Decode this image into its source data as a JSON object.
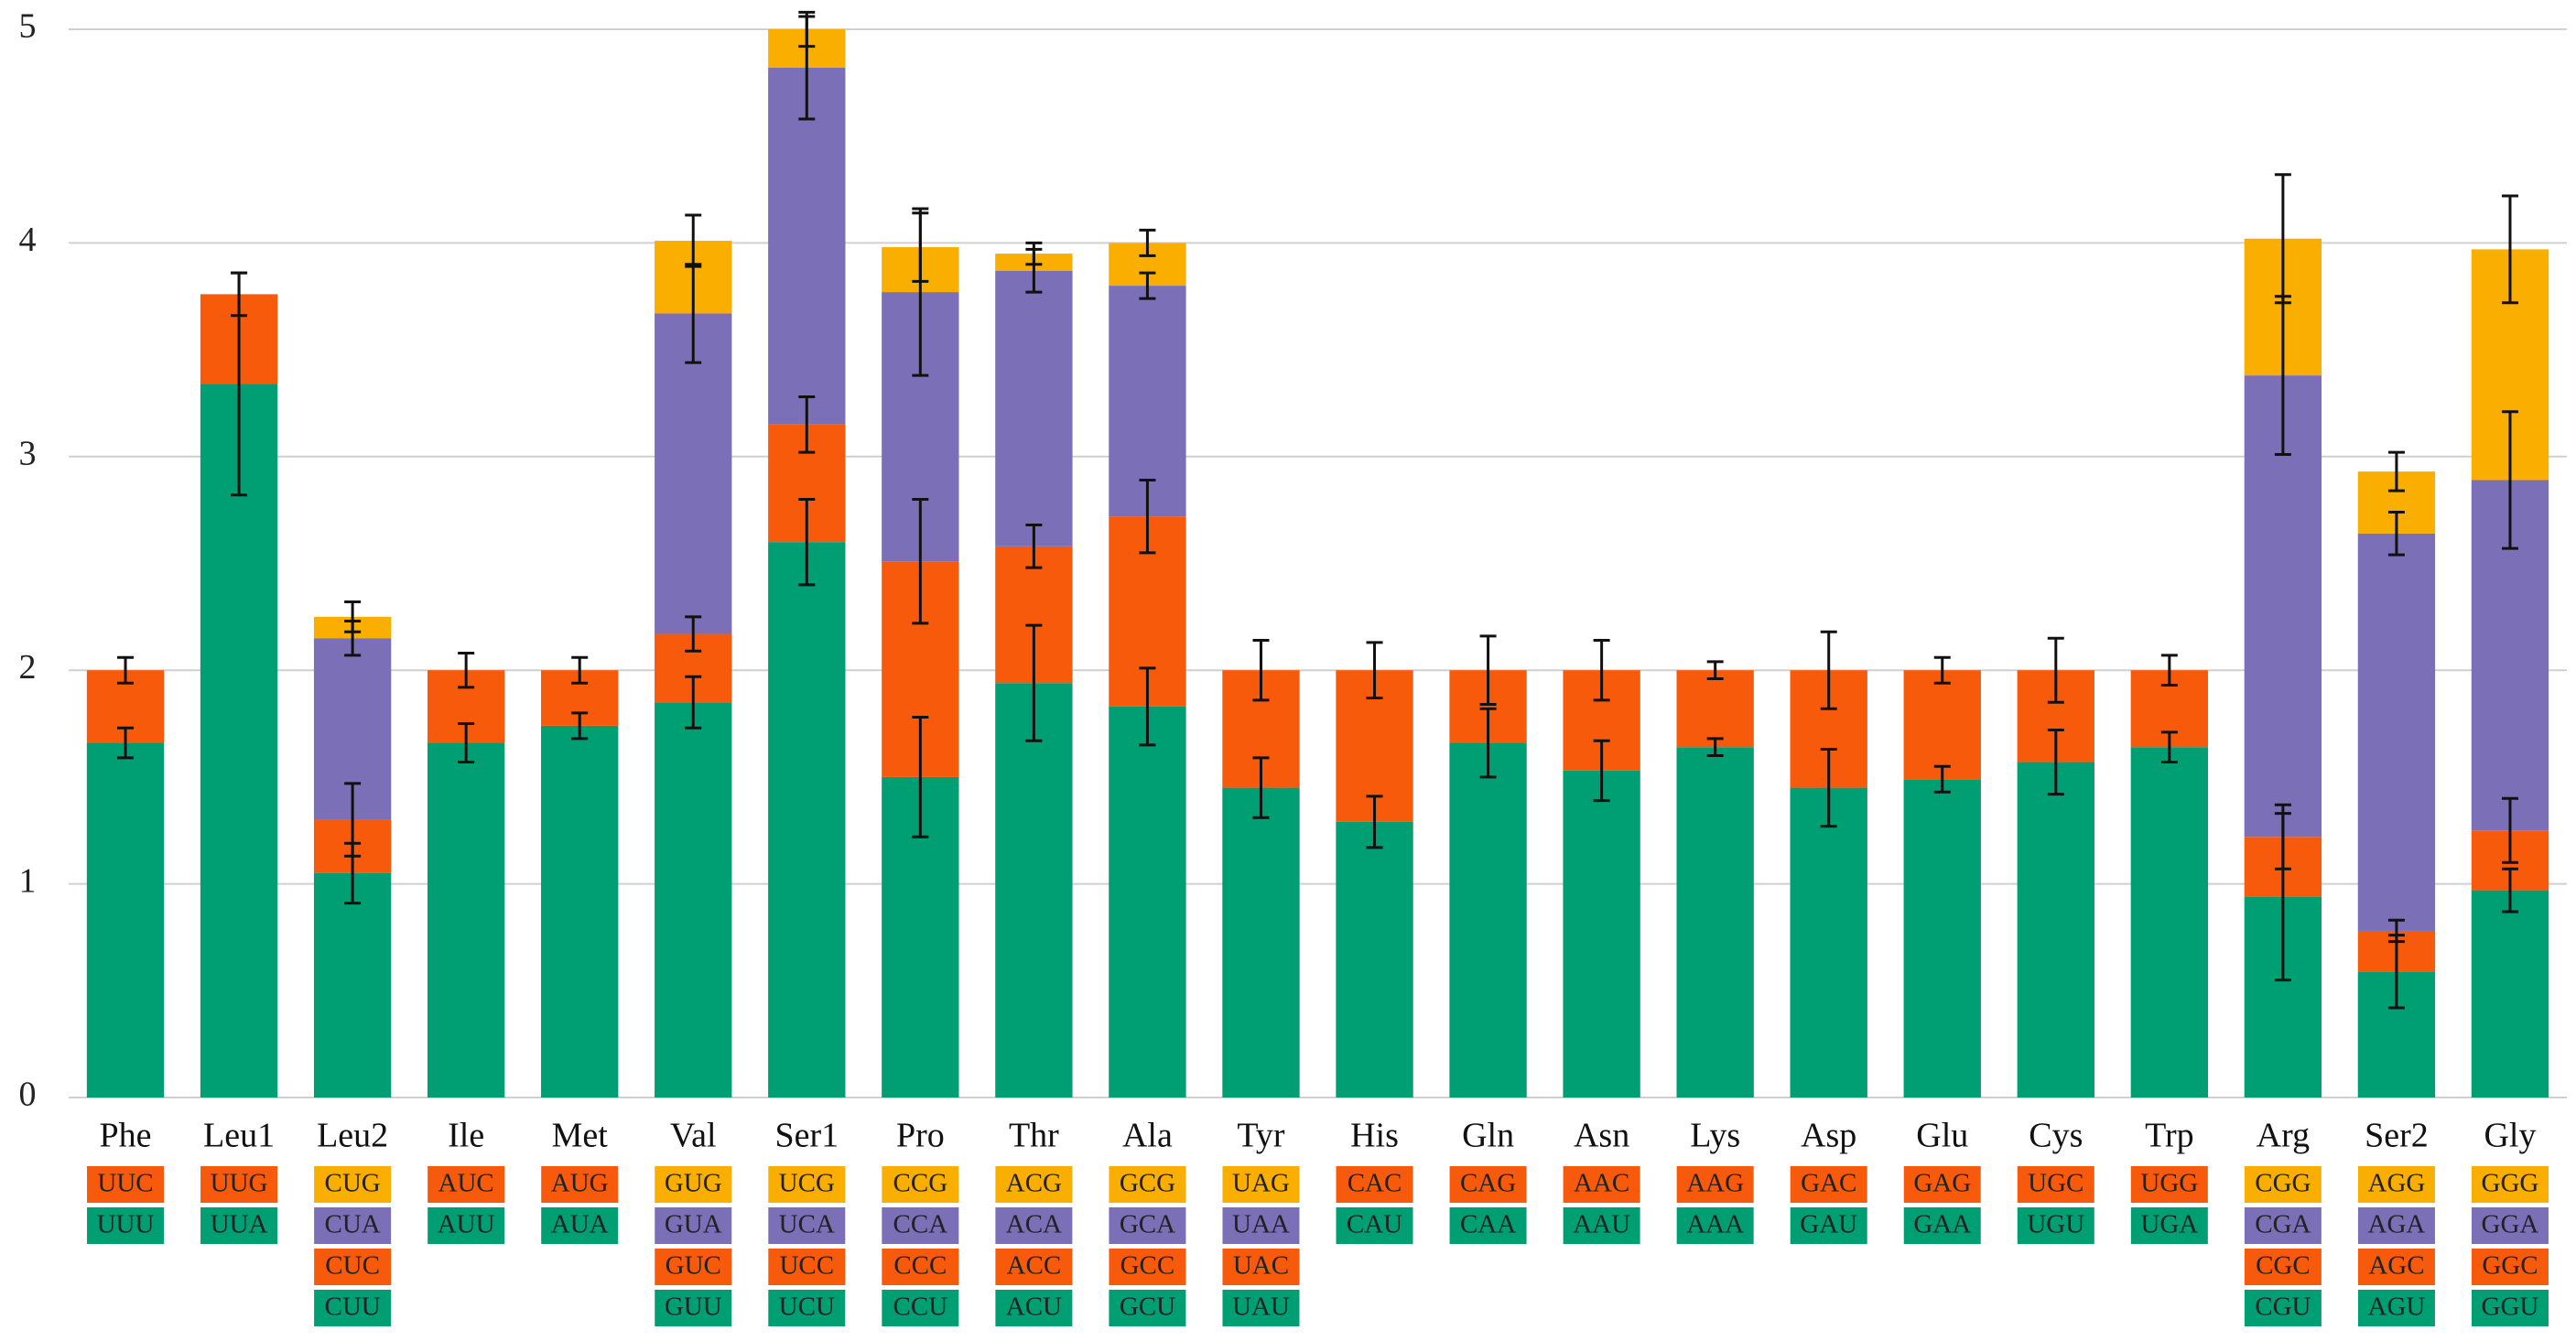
{
  "chart_data": {
    "type": "stacked_bar",
    "categories": [
      "Phe",
      "Leu1",
      "Leu2",
      "Ile",
      "Met",
      "Val",
      "Ser1",
      "Pro",
      "Thr",
      "Ala",
      "Tyr",
      "His",
      "Gln",
      "Asn",
      "Lys",
      "Asp",
      "Glu",
      "Cys",
      "Trp",
      "Arg",
      "Ser2",
      "Gly"
    ],
    "ylim": [
      0,
      5
    ],
    "yticks": [
      0,
      1,
      2,
      3,
      4,
      5
    ],
    "grid": true,
    "series": [
      {
        "color": "#009e73",
        "values": [
          1.66,
          3.34,
          1.05,
          1.66,
          1.74,
          1.85,
          2.6,
          1.5,
          1.94,
          1.83,
          1.45,
          1.29,
          1.66,
          1.53,
          1.64,
          1.45,
          1.49,
          1.57,
          1.64,
          0.94,
          0.59,
          0.97
        ],
        "errors": [
          0.07,
          0.52,
          0.14,
          0.09,
          0.06,
          0.12,
          0.2,
          0.28,
          0.27,
          0.18,
          0.14,
          0.12,
          0.16,
          0.14,
          0.04,
          0.18,
          0.06,
          0.15,
          0.07,
          0.39,
          0.17,
          0.1
        ],
        "codons": [
          "UUU",
          "UUA",
          "CUU",
          "AUU",
          "AUA",
          "GUU",
          "UCU",
          "CCU",
          "ACU",
          "GCU",
          "UAU",
          "CAU",
          "CAA",
          "AAU",
          "AAA",
          "GAU",
          "GAA",
          "UGU",
          "UGA",
          "CGU",
          "AGU",
          "GGU"
        ]
      },
      {
        "color": "#f85a0c",
        "values": [
          0.34,
          0.42,
          0.25,
          0.34,
          0.26,
          0.32,
          0.55,
          1.01,
          0.64,
          0.89,
          0.55,
          0.71,
          0.34,
          0.47,
          0.36,
          0.55,
          0.51,
          0.43,
          0.36,
          0.28,
          0.19,
          0.28
        ],
        "errors": [
          0.06,
          0.1,
          0.17,
          0.08,
          0.06,
          0.08,
          0.13,
          0.29,
          0.1,
          0.17,
          0.14,
          0.13,
          0.16,
          0.14,
          0.04,
          0.18,
          0.06,
          0.15,
          0.07,
          0.15,
          0.05,
          0.15
        ],
        "codons": [
          "UUC",
          "UUG",
          "CUC",
          "AUC",
          "AUG",
          "GUC",
          "UCC",
          "CCC",
          "ACC",
          "GCC",
          "UAC",
          "CAC",
          "CAG",
          "AAC",
          "AAG",
          "GAC",
          "GAG",
          "UGC",
          "UGG",
          "CGC",
          "AGC",
          "GGC"
        ]
      },
      {
        "color": "#7b6fb8",
        "values": [
          null,
          null,
          0.85,
          null,
          null,
          1.5,
          1.67,
          1.26,
          1.29,
          1.08,
          null,
          null,
          null,
          null,
          null,
          null,
          null,
          null,
          null,
          2.16,
          1.86,
          1.64
        ],
        "errors": [
          null,
          null,
          0.08,
          null,
          null,
          0.23,
          0.24,
          0.39,
          0.1,
          0.06,
          null,
          null,
          null,
          null,
          null,
          null,
          null,
          null,
          null,
          0.37,
          0.1,
          0.32
        ],
        "codons": [
          null,
          null,
          "CUA",
          null,
          null,
          "GUA",
          "UCA",
          "CCA",
          "ACA",
          "GCA",
          "UAA",
          null,
          null,
          null,
          null,
          null,
          null,
          null,
          null,
          "CGA",
          "AGA",
          "GGA"
        ]
      },
      {
        "color": "#f9ae00",
        "values": [
          null,
          null,
          0.1,
          null,
          null,
          0.34,
          0.18,
          0.21,
          0.08,
          0.2,
          null,
          null,
          null,
          null,
          null,
          null,
          null,
          null,
          null,
          0.64,
          0.29,
          1.08
        ],
        "errors": [
          null,
          null,
          0.07,
          null,
          null,
          0.12,
          0.08,
          0.16,
          0.05,
          0.06,
          null,
          null,
          null,
          null,
          null,
          null,
          null,
          null,
          null,
          0.3,
          0.09,
          0.25
        ],
        "codons": [
          null,
          null,
          "CUG",
          null,
          null,
          "GUG",
          "UCG",
          "CCG",
          "ACG",
          "GCG",
          "UAG",
          null,
          null,
          null,
          null,
          null,
          null,
          null,
          null,
          "CGG",
          "AGG",
          "GGG"
        ]
      }
    ]
  }
}
